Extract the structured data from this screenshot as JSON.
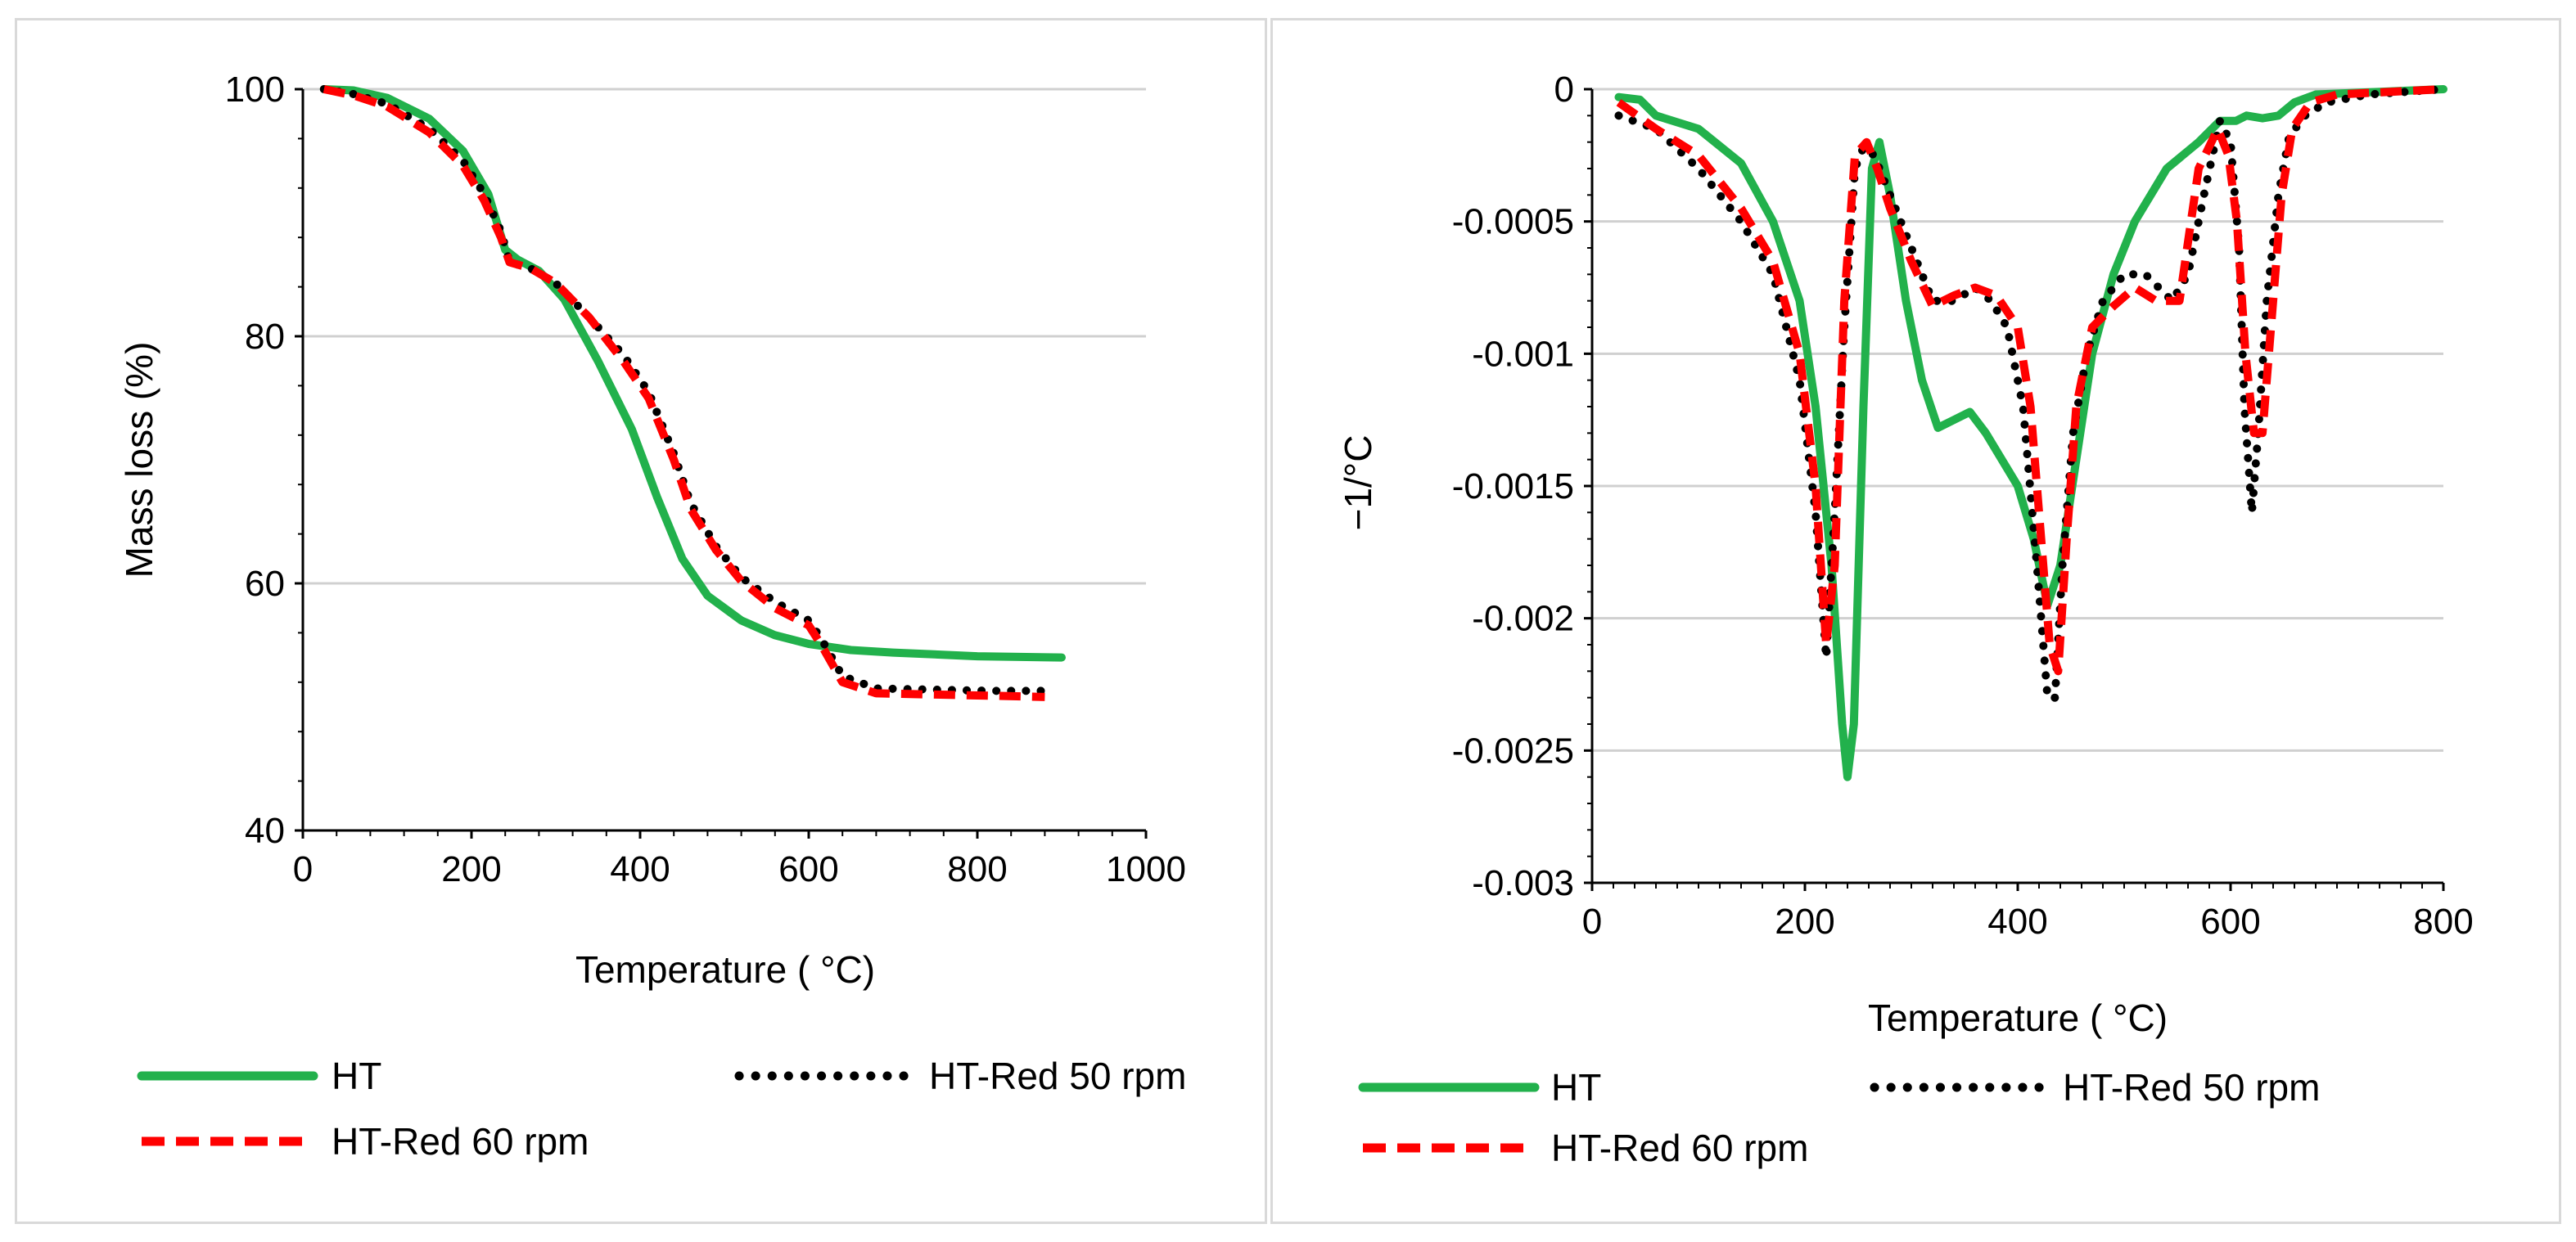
{
  "chart_data": [
    {
      "type": "line",
      "title": "",
      "xlabel": "Temperature ( °C)",
      "ylabel": "Mass loss (%)",
      "xlim": [
        0,
        1000
      ],
      "ylim": [
        40,
        100
      ],
      "xticks": [
        "0",
        "200",
        "400",
        "600",
        "800",
        "1000"
      ],
      "yticks": [
        "40",
        "60",
        "80",
        "100"
      ],
      "grid": true,
      "legend_position": "bottom",
      "series": [
        {
          "name": "HT",
          "color": "#22b14c",
          "style": "solid",
          "points": [
            [
              25,
              100
            ],
            [
              60,
              99.9
            ],
            [
              100,
              99.3
            ],
            [
              150,
              97.6
            ],
            [
              190,
              95
            ],
            [
              220,
              91.5
            ],
            [
              240,
              87
            ],
            [
              255,
              86.2
            ],
            [
              280,
              85.3
            ],
            [
              310,
              83
            ],
            [
              350,
              78
            ],
            [
              390,
              72.5
            ],
            [
              420,
              67
            ],
            [
              450,
              62
            ],
            [
              480,
              59
            ],
            [
              520,
              57
            ],
            [
              560,
              55.8
            ],
            [
              600,
              55.1
            ],
            [
              650,
              54.6
            ],
            [
              700,
              54.4
            ],
            [
              800,
              54.1
            ],
            [
              900,
              54
            ]
          ]
        },
        {
          "name": "HT-Red 50 rpm",
          "color": "#000000",
          "style": "dotted",
          "points": [
            [
              25,
              100
            ],
            [
              60,
              99.6
            ],
            [
              100,
              98.8
            ],
            [
              150,
              96.8
            ],
            [
              190,
              94.2
            ],
            [
              215,
              91.5
            ],
            [
              235,
              88.5
            ],
            [
              245,
              86
            ],
            [
              270,
              85.5
            ],
            [
              300,
              84.3
            ],
            [
              340,
              81.5
            ],
            [
              380,
              78.5
            ],
            [
              410,
              75.5
            ],
            [
              440,
              70.5
            ],
            [
              460,
              66.5
            ],
            [
              490,
              63
            ],
            [
              520,
              60.5
            ],
            [
              560,
              58.5
            ],
            [
              600,
              57
            ],
            [
              615,
              55.5
            ],
            [
              640,
              52.5
            ],
            [
              680,
              51.5
            ],
            [
              750,
              51.4
            ],
            [
              820,
              51.3
            ],
            [
              880,
              51.3
            ]
          ]
        },
        {
          "name": "HT-Red 60 rpm",
          "color": "#ff0000",
          "style": "dashed",
          "points": [
            [
              25,
              100
            ],
            [
              60,
              99.5
            ],
            [
              100,
              98.6
            ],
            [
              150,
              96.5
            ],
            [
              190,
              93.8
            ],
            [
              215,
              91
            ],
            [
              235,
              88
            ],
            [
              245,
              86
            ],
            [
              270,
              85.5
            ],
            [
              300,
              84.3
            ],
            [
              340,
              81.5
            ],
            [
              380,
              78
            ],
            [
              410,
              75
            ],
            [
              440,
              70
            ],
            [
              460,
              66
            ],
            [
              490,
              62.7
            ],
            [
              520,
              60.2
            ],
            [
              560,
              58
            ],
            [
              600,
              56.6
            ],
            [
              615,
              55
            ],
            [
              640,
              52
            ],
            [
              680,
              51.1
            ],
            [
              750,
              51
            ],
            [
              820,
              50.9
            ],
            [
              880,
              50.8
            ]
          ]
        }
      ]
    },
    {
      "type": "line",
      "title": "",
      "xlabel": "Temperature ( °C)",
      "ylabel": "−1/°C",
      "xlim": [
        0,
        800
      ],
      "ylim": [
        -0.003,
        0
      ],
      "xticks": [
        "0",
        "200",
        "400",
        "600",
        "800"
      ],
      "yticks": [
        "0",
        "-0.0005",
        "-0.001",
        "-0.0015",
        "-0.002",
        "-0.0025",
        "-0.003"
      ],
      "grid": true,
      "legend_position": "bottom",
      "series": [
        {
          "name": "HT",
          "color": "#22b14c",
          "style": "solid",
          "points": [
            [
              25,
              -3e-05
            ],
            [
              45,
              -4e-05
            ],
            [
              60,
              -0.0001
            ],
            [
              100,
              -0.00015
            ],
            [
              140,
              -0.00028
            ],
            [
              170,
              -0.0005
            ],
            [
              195,
              -0.0008
            ],
            [
              210,
              -0.0012
            ],
            [
              225,
              -0.0018
            ],
            [
              235,
              -0.0024
            ],
            [
              240,
              -0.0026
            ],
            [
              246,
              -0.0024
            ],
            [
              255,
              -0.0012
            ],
            [
              263,
              -0.0003
            ],
            [
              270,
              -0.0002
            ],
            [
              280,
              -0.0004
            ],
            [
              295,
              -0.0008
            ],
            [
              310,
              -0.0011
            ],
            [
              325,
              -0.00128
            ],
            [
              340,
              -0.00125
            ],
            [
              355,
              -0.00122
            ],
            [
              370,
              -0.0013
            ],
            [
              385,
              -0.0014
            ],
            [
              400,
              -0.0015
            ],
            [
              415,
              -0.0017
            ],
            [
              428,
              -0.00195
            ],
            [
              440,
              -0.0018
            ],
            [
              455,
              -0.0014
            ],
            [
              470,
              -0.001
            ],
            [
              490,
              -0.0007
            ],
            [
              510,
              -0.0005
            ],
            [
              540,
              -0.0003
            ],
            [
              570,
              -0.0002
            ],
            [
              590,
              -0.00012
            ],
            [
              605,
              -0.00012
            ],
            [
              615,
              -0.0001
            ],
            [
              630,
              -0.00011
            ],
            [
              645,
              -0.0001
            ],
            [
              660,
              -5e-05
            ],
            [
              680,
              -2e-05
            ],
            [
              800,
              0
            ]
          ]
        },
        {
          "name": "HT-Red 50 rpm",
          "color": "#000000",
          "style": "dotted",
          "points": [
            [
              25,
              -0.0001
            ],
            [
              60,
              -0.00015
            ],
            [
              100,
              -0.0003
            ],
            [
              140,
              -0.0005
            ],
            [
              170,
              -0.0007
            ],
            [
              195,
              -0.0011
            ],
            [
              210,
              -0.0016
            ],
            [
              220,
              -0.00215
            ],
            [
              228,
              -0.0016
            ],
            [
              237,
              -0.0009
            ],
            [
              247,
              -0.0003
            ],
            [
              255,
              -0.00022
            ],
            [
              265,
              -0.00025
            ],
            [
              280,
              -0.0004
            ],
            [
              300,
              -0.0006
            ],
            [
              320,
              -0.0008
            ],
            [
              340,
              -0.0008
            ],
            [
              360,
              -0.00075
            ],
            [
              375,
              -0.0008
            ],
            [
              390,
              -0.0009
            ],
            [
              405,
              -0.0012
            ],
            [
              418,
              -0.0018
            ],
            [
              428,
              -0.0023
            ],
            [
              435,
              -0.0023
            ],
            [
              442,
              -0.0018
            ],
            [
              452,
              -0.0013
            ],
            [
              465,
              -0.001
            ],
            [
              480,
              -0.0008
            ],
            [
              500,
              -0.0007
            ],
            [
              520,
              -0.0007
            ],
            [
              545,
              -0.0008
            ],
            [
              560,
              -0.0007
            ],
            [
              575,
              -0.0004
            ],
            [
              590,
              -0.00012
            ],
            [
              600,
              -0.0002
            ],
            [
              608,
              -0.0006
            ],
            [
              613,
              -0.0012
            ],
            [
              620,
              -0.0016
            ],
            [
              626,
              -0.0013
            ],
            [
              634,
              -0.0008
            ],
            [
              645,
              -0.0004
            ],
            [
              655,
              -0.00018
            ],
            [
              670,
              -0.0001
            ],
            [
              690,
              -5e-05
            ],
            [
              730,
              -2e-05
            ],
            [
              800,
              0
            ]
          ]
        },
        {
          "name": "HT-Red 60 rpm",
          "color": "#ff0000",
          "style": "dashed",
          "points": [
            [
              25,
              -5e-05
            ],
            [
              60,
              -0.00015
            ],
            [
              100,
              -0.00025
            ],
            [
              140,
              -0.00045
            ],
            [
              170,
              -0.00065
            ],
            [
              195,
              -0.001
            ],
            [
              210,
              -0.0015
            ],
            [
              220,
              -0.0021
            ],
            [
              228,
              -0.0018
            ],
            [
              237,
              -0.0008
            ],
            [
              247,
              -0.00025
            ],
            [
              258,
              -0.0002
            ],
            [
              268,
              -0.0003
            ],
            [
              280,
              -0.00045
            ],
            [
              300,
              -0.00065
            ],
            [
              320,
              -0.00082
            ],
            [
              340,
              -0.00078
            ],
            [
              360,
              -0.00075
            ],
            [
              380,
              -0.00078
            ],
            [
              400,
              -0.0009
            ],
            [
              412,
              -0.0012
            ],
            [
              422,
              -0.0017
            ],
            [
              430,
              -0.0021
            ],
            [
              438,
              -0.0022
            ],
            [
              446,
              -0.0017
            ],
            [
              455,
              -0.0012
            ],
            [
              470,
              -0.0009
            ],
            [
              490,
              -0.00082
            ],
            [
              510,
              -0.00075
            ],
            [
              530,
              -0.0008
            ],
            [
              552,
              -0.0008
            ],
            [
              570,
              -0.0003
            ],
            [
              588,
              -0.00015
            ],
            [
              598,
              -0.00025
            ],
            [
              606,
              -0.0005
            ],
            [
              614,
              -0.001
            ],
            [
              622,
              -0.0013
            ],
            [
              630,
              -0.0013
            ],
            [
              638,
              -0.0009
            ],
            [
              648,
              -0.0004
            ],
            [
              658,
              -0.00015
            ],
            [
              675,
              -5e-05
            ],
            [
              700,
              -2e-05
            ],
            [
              800,
              0
            ]
          ]
        }
      ]
    }
  ]
}
